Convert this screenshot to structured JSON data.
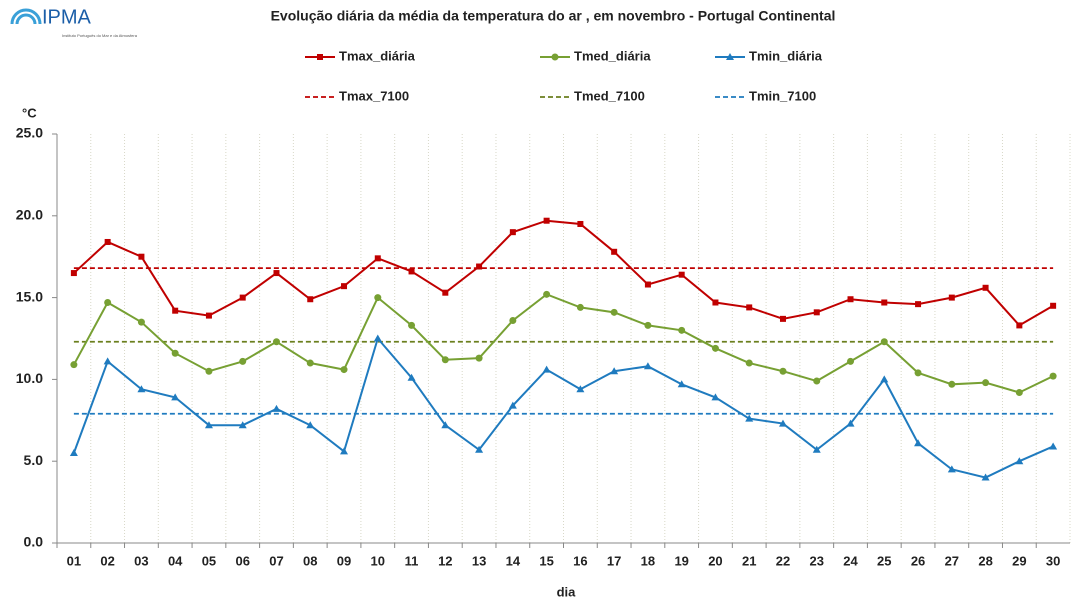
{
  "logo": {
    "name": "IPMA",
    "subtitle": "Instituto Português do Mar e da Atmosfera"
  },
  "chart_data": {
    "type": "line",
    "title": "Evolução diária da média da temperatura do ar , em novembro - Portugal Continental",
    "y_label": "°C",
    "x_label": "dia",
    "categories": [
      "01",
      "02",
      "03",
      "04",
      "05",
      "06",
      "07",
      "08",
      "09",
      "10",
      "11",
      "12",
      "13",
      "14",
      "15",
      "16",
      "17",
      "18",
      "19",
      "20",
      "21",
      "22",
      "23",
      "24",
      "25",
      "26",
      "27",
      "28",
      "29",
      "30"
    ],
    "series": [
      {
        "name": "Tmax_diária",
        "color": "#c00000",
        "marker": "square",
        "values": [
          16.5,
          18.4,
          17.5,
          14.2,
          13.9,
          15.0,
          16.5,
          14.9,
          15.7,
          17.4,
          16.6,
          15.3,
          16.9,
          19.0,
          19.7,
          19.5,
          17.8,
          15.8,
          16.4,
          14.7,
          14.4,
          13.7,
          14.1,
          14.9,
          14.7,
          14.6,
          15.0,
          15.6,
          13.3,
          14.5
        ]
      },
      {
        "name": "Tmed_diária",
        "color": "#77a033",
        "marker": "circle",
        "values": [
          10.9,
          14.7,
          13.5,
          11.6,
          10.5,
          11.1,
          12.3,
          11.0,
          10.6,
          15.0,
          13.3,
          11.2,
          11.3,
          13.6,
          15.2,
          14.4,
          14.1,
          13.3,
          13.0,
          11.9,
          11.0,
          10.5,
          9.9,
          11.1,
          12.3,
          10.4,
          9.7,
          9.8,
          9.2,
          10.2
        ]
      },
      {
        "name": "Tmin_diária",
        "color": "#1f7bbf",
        "marker": "triangle",
        "values": [
          5.5,
          11.1,
          9.4,
          8.9,
          7.2,
          7.2,
          8.2,
          7.2,
          5.6,
          12.5,
          10.1,
          7.2,
          5.7,
          8.4,
          10.6,
          9.4,
          10.5,
          10.8,
          9.7,
          8.9,
          7.6,
          7.3,
          5.7,
          7.3,
          10.0,
          6.1,
          4.5,
          4.0,
          5.0,
          5.9
        ]
      }
    ],
    "reference_lines": [
      {
        "name": "Tmax_7100",
        "color": "#c00000",
        "style": "dashed",
        "value": 16.8
      },
      {
        "name": "Tmed_7100",
        "color": "#6b7f1e",
        "style": "dashed",
        "value": 12.3
      },
      {
        "name": "Tmin_7100",
        "color": "#1f7bbf",
        "style": "dashed",
        "value": 7.9
      }
    ],
    "ylim": [
      0,
      25
    ],
    "yticks": [
      {
        "value": 0,
        "label": "0.0"
      },
      {
        "value": 5,
        "label": "5.0"
      },
      {
        "value": 10,
        "label": "10.0"
      },
      {
        "value": 15,
        "label": "15.0"
      },
      {
        "value": 20,
        "label": "20.0"
      },
      {
        "value": 25,
        "label": "25.0"
      }
    ],
    "grid": "vertical"
  }
}
